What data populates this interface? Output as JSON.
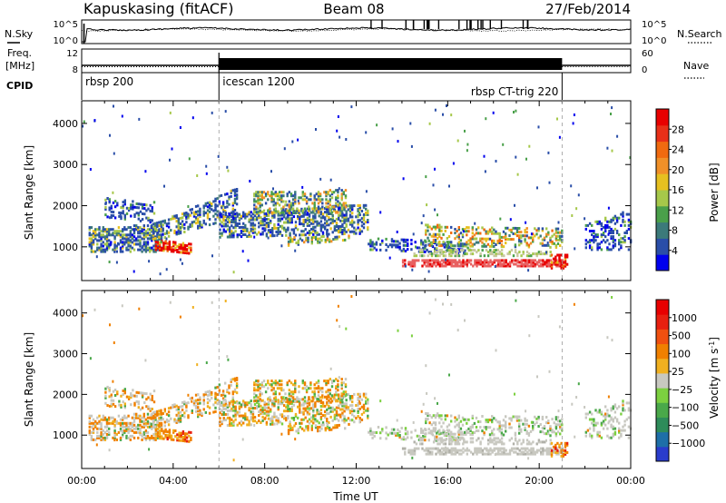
{
  "header": {
    "station": "Kapuskasing (fitACF)",
    "beam": "Beam 08",
    "date": "27/Feb/2014"
  },
  "chart_data": [
    {
      "type": "line",
      "panel": "noise",
      "left_label": "N.Sky",
      "right_label": "N.Search",
      "yticks": [
        "10^5",
        "10^0"
      ],
      "right_yticks": [
        "10^5",
        "10^0"
      ],
      "xlim": [
        0,
        24
      ]
    },
    {
      "type": "line",
      "panel": "frequency",
      "left_label_lines": [
        "Freq.",
        "[MHz]"
      ],
      "right_label": "Nave",
      "yticks": [
        "12",
        "8"
      ],
      "right_yticks": [
        "60",
        "0"
      ],
      "xlim": [
        0,
        24
      ]
    },
    {
      "type": "table",
      "panel": "cpid",
      "label": "CPID",
      "segments": [
        {
          "start_hour": 0,
          "name": "rbsp 200"
        },
        {
          "start_hour": 6,
          "name": "icescan 1200"
        },
        {
          "start_hour": 21,
          "name": "rbsp CT-trig 220",
          "label_align": "end"
        }
      ]
    },
    {
      "type": "heatmap",
      "panel": "power",
      "ylabel": "Slant Range [km]",
      "ylim": [
        180,
        4550
      ],
      "yticks": [
        1000,
        2000,
        3000,
        4000
      ],
      "xlim": [
        0,
        24
      ],
      "colorbar": {
        "label": "Power [dB]",
        "colors": [
          "#0000ee",
          "#2a4ea8",
          "#3c7a7a",
          "#4aa04a",
          "#a6c84a",
          "#e6c020",
          "#f09028",
          "#f06a10",
          "#e83018",
          "#e80000"
        ],
        "ticks": [
          "4",
          "8",
          "12",
          "16",
          "20",
          "24",
          "28"
        ]
      }
    },
    {
      "type": "heatmap",
      "panel": "velocity",
      "ylabel": "Slant Range [km]",
      "ylim": [
        180,
        4550
      ],
      "yticks": [
        1000,
        2000,
        3000,
        4000
      ],
      "xlim": [
        0,
        24
      ],
      "xticks": [
        "00:00",
        "04:00",
        "08:00",
        "12:00",
        "16:00",
        "20:00",
        "00:00"
      ],
      "xlabel": "Time UT",
      "colorbar": {
        "label": "Velocity [m s",
        "label_sup": "-1",
        "label_end": "]",
        "colors": [
          "#2a3ccc",
          "#1e6fa8",
          "#2e8c5a",
          "#4aa84a",
          "#7cd040",
          "#c8c8c0",
          "#f0b020",
          "#f08000",
          "#f05010",
          "#e82010",
          "#e80000"
        ],
        "ticks": [
          "1000",
          "500",
          "100",
          "25",
          "−25",
          "−100",
          "−500",
          "−1000"
        ]
      }
    }
  ]
}
